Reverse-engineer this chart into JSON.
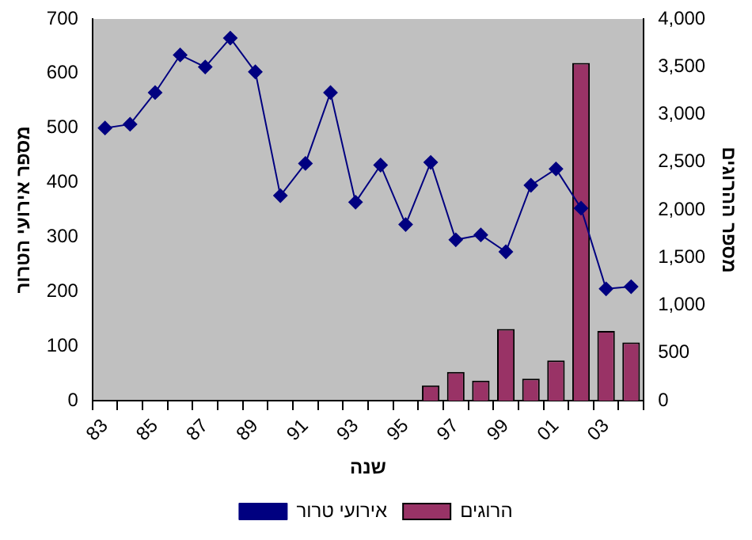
{
  "chart_data": {
    "type": "bar",
    "xlabel": "שנה",
    "ylabel": "מספר אירועי הטרור",
    "y2label": "מספר ההרוגים",
    "categories": [
      "83",
      null,
      "85",
      null,
      "87",
      null,
      "89",
      null,
      "91",
      null,
      "93",
      null,
      "95",
      null,
      "97",
      null,
      "99",
      null,
      "01",
      null,
      "03",
      null
    ],
    "series": [
      {
        "name": "הרוגים",
        "axis": "y2",
        "color": "#993366",
        "values": [
          null,
          null,
          null,
          null,
          null,
          null,
          null,
          null,
          null,
          null,
          null,
          null,
          null,
          160,
          300,
          210,
          750,
          230,
          420,
          3540,
          730,
          610
        ]
      },
      {
        "name": "אירועי טרור",
        "type": "line",
        "color": "#000080",
        "marker": "diamond",
        "values": [
          500,
          507,
          565,
          634,
          612,
          665,
          603,
          376,
          435,
          565,
          364,
          432,
          323,
          437,
          295,
          304,
          273,
          395,
          425,
          353,
          205,
          209
        ]
      }
    ],
    "ylim": [
      0,
      700
    ],
    "yticks": [
      0,
      100,
      200,
      300,
      400,
      500,
      600,
      700
    ],
    "y2lim": [
      0,
      4000
    ],
    "y2ticks": [
      {
        "value": 0,
        "label": "0"
      },
      {
        "value": 500,
        "label": "500"
      },
      {
        "value": 1000,
        "label": "1,000"
      },
      {
        "value": 1500,
        "label": "1,500"
      },
      {
        "value": 2000,
        "label": "2,000"
      },
      {
        "value": 2500,
        "label": "2,500"
      },
      {
        "value": 3000,
        "label": "3,000"
      },
      {
        "value": 3500,
        "label": "3,500"
      },
      {
        "value": 4000,
        "label": "4,000"
      }
    ],
    "grid": false,
    "legend": "bottom"
  }
}
